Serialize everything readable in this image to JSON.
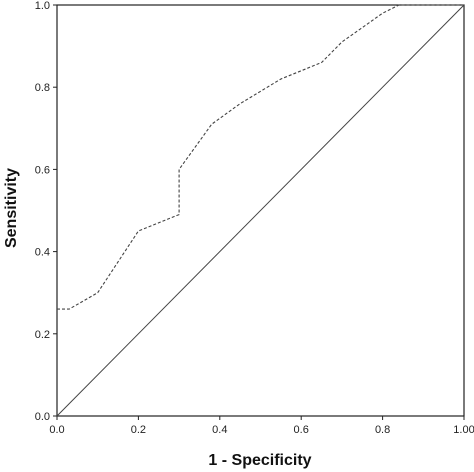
{
  "chart_data": {
    "type": "line",
    "title": "",
    "xlabel": "1 - Specificity",
    "ylabel": "Sensitivity",
    "xlim": [
      0.0,
      1.0
    ],
    "ylim": [
      0.0,
      1.0
    ],
    "x_ticks": [
      0.0,
      0.2,
      0.4,
      0.6,
      0.8,
      1.0
    ],
    "y_ticks": [
      0.0,
      0.2,
      0.4,
      0.6,
      0.8,
      1.0
    ],
    "x_tick_labels": [
      "0.0",
      "0.2",
      "0.4",
      "0.6",
      "0.8",
      "1.00"
    ],
    "y_tick_labels": [
      "0.0",
      "0.2",
      "0.4",
      "0.6",
      "0.8",
      "1.0"
    ],
    "grid": false,
    "legend": "none",
    "series": [
      {
        "style": "dashed",
        "color": "#444444",
        "x": [
          0.0,
          0.03,
          0.1,
          0.2,
          0.3,
          0.3,
          0.38,
          0.45,
          0.55,
          0.65,
          0.7,
          0.8,
          0.84,
          1.0
        ],
        "y": [
          0.26,
          0.26,
          0.3,
          0.45,
          0.49,
          0.6,
          0.71,
          0.76,
          0.82,
          0.86,
          0.91,
          0.98,
          1.0,
          1.0
        ]
      },
      {
        "style": "solid",
        "color": "#444444",
        "x": [
          0.0,
          1.0
        ],
        "y": [
          0.0,
          1.0
        ]
      }
    ]
  }
}
